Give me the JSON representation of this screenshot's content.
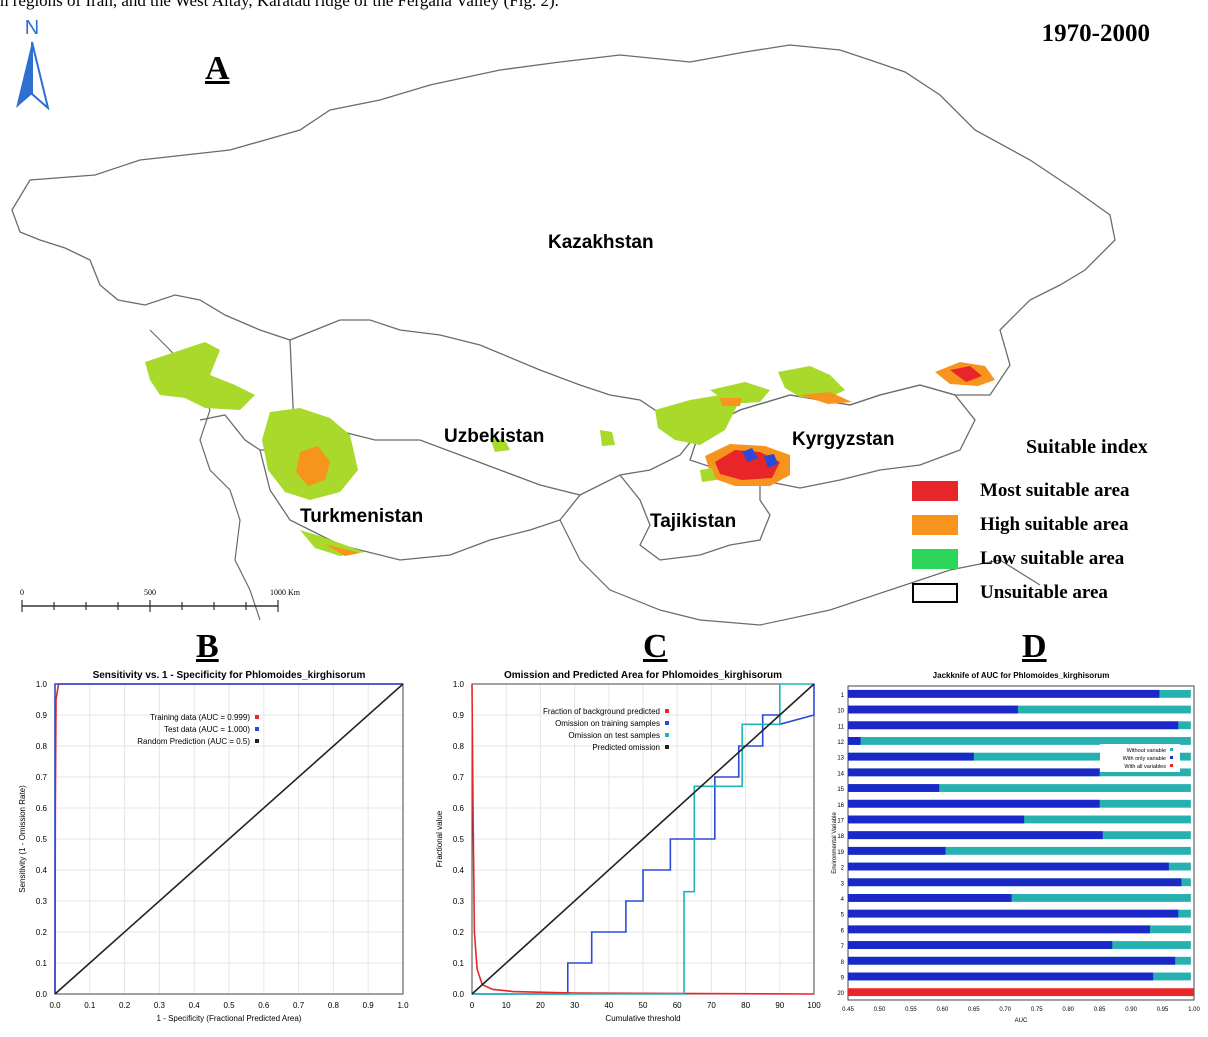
{
  "caption": "n regions of Iran, and the West Altay, Karatau ridge of the Fergana Valley (Fig. 2).",
  "map": {
    "panel_label": "A",
    "period": "1970-2000",
    "north_label": "N",
    "countries": [
      "Kazakhstan",
      "Uzbekistan",
      "Kyrgyzstan",
      "Turkmenistan",
      "Tajikistan"
    ],
    "scale_labels": [
      "0",
      "500",
      "1000 Km"
    ],
    "legend_title": "Suitable index",
    "legend": [
      {
        "label": "Most suitable area",
        "color": "#e8262a"
      },
      {
        "label": "High suitable area",
        "color": "#f7941d"
      },
      {
        "label": "Low suitable area",
        "color": "#2dd65a"
      },
      {
        "label": "Unsuitable area",
        "color": "#ffffff"
      }
    ],
    "colors": {
      "lime": "#a8d92b",
      "orange": "#f7941d",
      "red": "#e8262a",
      "blue": "#2b4bd6"
    }
  },
  "panels": {
    "b": "B",
    "c": "C",
    "d": "D"
  },
  "chart_data": [
    {
      "type": "line",
      "title": "Sensitivity vs. 1 - Specificity for Phlomoides_kirghisorum",
      "xlabel": "1 - Specificity (Fractional Predicted Area)",
      "ylabel": "Sensitivity (1 - Omission Rate)",
      "xlim": [
        0,
        1
      ],
      "ylim": [
        0,
        1
      ],
      "xticks": [
        "0.0",
        "0.1",
        "0.2",
        "0.3",
        "0.4",
        "0.5",
        "0.6",
        "0.7",
        "0.8",
        "0.9",
        "1.0"
      ],
      "yticks": [
        "0.0",
        "0.1",
        "0.2",
        "0.3",
        "0.4",
        "0.5",
        "0.6",
        "0.7",
        "0.8",
        "0.9",
        "1.0"
      ],
      "legend_placement": "top-center",
      "series": [
        {
          "name": "Training data (AUC = 0.999)",
          "color": "#e8262a",
          "x": [
            0,
            0.001,
            0.003,
            0.01,
            1.0
          ],
          "y": [
            0,
            0.6,
            0.95,
            1.0,
            1.0
          ]
        },
        {
          "name": "Test data (AUC = 1.000)",
          "color": "#2b4bd6",
          "x": [
            0,
            0,
            1.0
          ],
          "y": [
            0,
            1.0,
            1.0
          ]
        },
        {
          "name": "Random Prediction (AUC = 0.5)",
          "color": "#222222",
          "x": [
            0,
            1.0
          ],
          "y": [
            0,
            1.0
          ]
        }
      ]
    },
    {
      "type": "line",
      "title": "Omission and Predicted Area for Phlomoides_kirghisorum",
      "xlabel": "Cumulative threshold",
      "ylabel": "Fractional value",
      "xlim": [
        0,
        100
      ],
      "ylim": [
        0,
        1
      ],
      "xticks": [
        "0",
        "10",
        "20",
        "30",
        "40",
        "50",
        "60",
        "70",
        "80",
        "90",
        "100"
      ],
      "yticks": [
        "0.0",
        "0.1",
        "0.2",
        "0.3",
        "0.4",
        "0.5",
        "0.6",
        "0.7",
        "0.8",
        "0.9",
        "1.0"
      ],
      "legend_placement": "top-center",
      "series": [
        {
          "name": "Fraction of background predicted",
          "color": "#e8262a",
          "x": [
            0,
            0.3,
            0.7,
            1.5,
            3,
            6,
            12,
            30,
            100
          ],
          "y": [
            1.0,
            0.6,
            0.2,
            0.08,
            0.03,
            0.015,
            0.008,
            0.003,
            0.0
          ]
        },
        {
          "name": "Omission on training samples",
          "color": "#2b4bd6",
          "x": [
            0,
            28,
            28,
            35,
            35,
            45,
            45,
            50,
            50,
            58,
            58,
            64,
            64,
            71,
            71,
            78,
            78,
            85,
            85,
            90,
            90,
            100,
            100
          ],
          "y": [
            0,
            0,
            0.1,
            0.1,
            0.2,
            0.2,
            0.3,
            0.3,
            0.4,
            0.4,
            0.5,
            0.5,
            0.5,
            0.5,
            0.7,
            0.7,
            0.8,
            0.8,
            0.9,
            0.9,
            0.87,
            0.9,
            1.0
          ]
        },
        {
          "name": "Omission on test samples",
          "color": "#1fb5b5",
          "x": [
            0,
            62,
            62,
            65,
            65,
            71,
            71,
            79,
            79,
            90,
            90,
            100
          ],
          "y": [
            0,
            0,
            0.33,
            0.33,
            0.67,
            0.67,
            0.67,
            0.67,
            0.87,
            0.87,
            1.0,
            1.0
          ]
        },
        {
          "name": "Predicted omission",
          "color": "#222222",
          "x": [
            0,
            100
          ],
          "y": [
            0,
            1.0
          ]
        }
      ]
    },
    {
      "type": "bar",
      "title": "Jackknife of AUC for Phlomoides_kirghisorum",
      "xlabel": "AUC",
      "ylabel": "Environmental Variable",
      "xlim": [
        0.45,
        1.0
      ],
      "xticks": [
        "0.45",
        "0.50",
        "0.55",
        "0.60",
        "0.65",
        "0.70",
        "0.75",
        "0.80",
        "0.85",
        "0.90",
        "0.95",
        "1.00"
      ],
      "categories": [
        "1",
        "10",
        "11",
        "12",
        "13",
        "14",
        "15",
        "16",
        "17",
        "18",
        "19",
        "2",
        "3",
        "4",
        "5",
        "6",
        "7",
        "8",
        "9",
        "20"
      ],
      "legend_placement": "center-right",
      "series": [
        {
          "name": "Without variable",
          "color": "#27b0b0",
          "values": [
            0.995,
            0.995,
            0.995,
            0.995,
            0.995,
            0.995,
            0.995,
            0.995,
            0.995,
            0.995,
            0.995,
            0.995,
            0.995,
            0.995,
            0.995,
            0.995,
            0.995,
            0.995,
            0.995,
            0.995
          ]
        },
        {
          "name": "With only variable",
          "color": "#1a28c8",
          "values": [
            0.945,
            0.72,
            0.975,
            0.47,
            0.65,
            0.85,
            0.595,
            0.85,
            0.73,
            0.855,
            0.605,
            0.96,
            0.98,
            0.71,
            0.975,
            0.93,
            0.87,
            0.97,
            0.935,
            0.995
          ]
        },
        {
          "name": "With all variables",
          "color": "#e8262a",
          "values": [
            null,
            null,
            null,
            null,
            null,
            null,
            null,
            null,
            null,
            null,
            null,
            null,
            null,
            null,
            null,
            null,
            null,
            null,
            null,
            1.0
          ]
        }
      ]
    }
  ]
}
